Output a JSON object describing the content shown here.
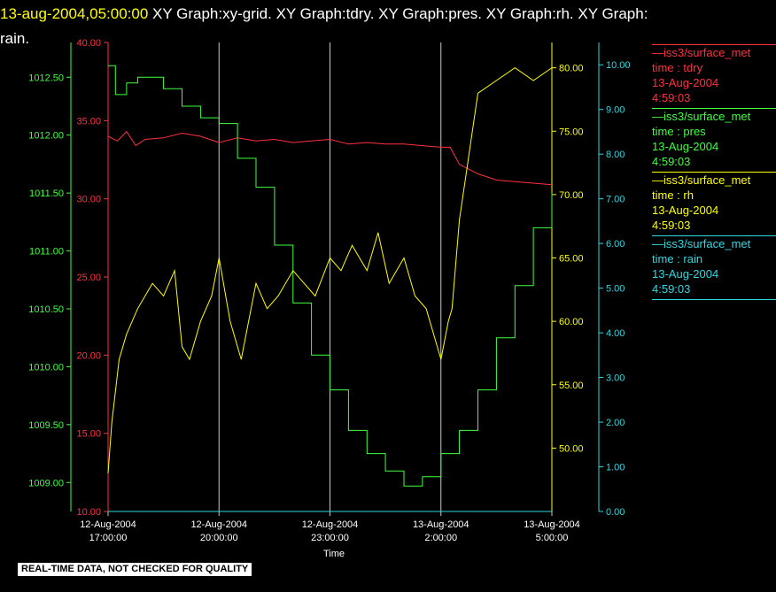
{
  "header": {
    "date": "13-aug-2004,05:00:00",
    "graphs": "XY Graph:xy-grid.  XY Graph:tdry.  XY Graph:pres.  XY Graph:rh.  XY Graph:",
    "graphs_cont": "rain."
  },
  "footer": {
    "note": "REAL-TIME DATA, NOT CHECKED FOR QUALITY"
  },
  "legend": [
    {
      "source": "—iss3/surface_met",
      "var": "time : tdry",
      "date": "13-Aug-2004",
      "time": "4:59:03",
      "color": "#ff3040"
    },
    {
      "source": "—iss3/surface_met",
      "var": "time : pres",
      "date": "13-Aug-2004",
      "time": "4:59:03",
      "color": "#40ff40"
    },
    {
      "source": "—iss3/surface_met",
      "var": "time : rh",
      "date": "13-Aug-2004",
      "time": "4:59:03",
      "color": "#ffff00"
    },
    {
      "source": "—iss3/surface_met",
      "var": "time : rain",
      "date": "13-Aug-2004",
      "time": "4:59:03",
      "color": "#30d8e0"
    }
  ],
  "chart_data": {
    "type": "line",
    "xlabel": "Time",
    "x_ticks": [
      {
        "date": "12-Aug-2004",
        "time": "17:00:00",
        "hour": 0
      },
      {
        "date": "12-Aug-2004",
        "time": "20:00:00",
        "hour": 3
      },
      {
        "date": "12-Aug-2004",
        "time": "23:00:00",
        "hour": 6
      },
      {
        "date": "13-Aug-2004",
        "time": "2:00:00",
        "hour": 9
      },
      {
        "date": "13-Aug-2004",
        "time": "5:00:00",
        "hour": 12
      }
    ],
    "xlim": [
      0,
      12
    ],
    "grid": true,
    "axes": [
      {
        "id": "pres",
        "side": "left",
        "color": "#40ff40",
        "ylim": [
          1008.75,
          1012.8
        ],
        "ticks": [
          "1009.00",
          "1009.50",
          "1010.00",
          "1010.50",
          "1011.00",
          "1011.50",
          "1012.00",
          "1012.50"
        ]
      },
      {
        "id": "tdry",
        "side": "left",
        "color": "#ff3040",
        "ylim": [
          10,
          40
        ],
        "ticks": [
          "10.00",
          "15.00",
          "20.00",
          "25.00",
          "30.00",
          "35.00",
          "40.00"
        ]
      },
      {
        "id": "rh",
        "side": "right",
        "color": "#ffff00",
        "ylim": [
          45,
          82
        ],
        "ticks": [
          "50.00",
          "55.00",
          "60.00",
          "65.00",
          "70.00",
          "75.00",
          "80.00"
        ]
      },
      {
        "id": "rain",
        "side": "right",
        "color": "#30d8e0",
        "ylim": [
          0,
          10.5
        ],
        "ticks": [
          "0.00",
          "1.00",
          "2.00",
          "3.00",
          "4.00",
          "5.00",
          "6.00",
          "7.00",
          "8.00",
          "9.00",
          "10.00"
        ]
      }
    ],
    "series": [
      {
        "axis": "tdry",
        "color": "#ff3040",
        "x": [
          0,
          0.25,
          0.5,
          0.75,
          1,
          1.5,
          2,
          2.5,
          3,
          3.5,
          4,
          4.5,
          5,
          5.5,
          6,
          6.5,
          7,
          7.5,
          8,
          8.5,
          9,
          9.25,
          9.5,
          10,
          10.5,
          11,
          11.5,
          12
        ],
        "y": [
          34,
          33.7,
          34.3,
          33.4,
          33.8,
          33.9,
          34.2,
          34,
          33.6,
          33.9,
          33.7,
          33.8,
          33.6,
          33.7,
          33.8,
          33.5,
          33.6,
          33.5,
          33.5,
          33.4,
          33.3,
          33.3,
          32.2,
          31.6,
          31.2,
          31.1,
          31,
          30.9
        ]
      },
      {
        "axis": "pres",
        "color": "#40ff40",
        "x": [
          0,
          0.2,
          0.5,
          0.8,
          1.5,
          2,
          2.5,
          3,
          3.5,
          4,
          4.5,
          5,
          5.5,
          6,
          6.5,
          7,
          7.5,
          8,
          8.5,
          9,
          9.5,
          10,
          10.5,
          11,
          11.5,
          12
        ],
        "y": [
          1012.6,
          1012.35,
          1012.45,
          1012.5,
          1012.4,
          1012.25,
          1012.15,
          1012.1,
          1011.8,
          1011.55,
          1011.05,
          1010.55,
          1010.1,
          1009.8,
          1009.45,
          1009.25,
          1009.1,
          1008.97,
          1009.05,
          1009.25,
          1009.45,
          1009.8,
          1010.25,
          1010.7,
          1011.2,
          1011.5
        ]
      },
      {
        "axis": "rh",
        "color": "#ffff00",
        "x": [
          0,
          0.1,
          0.3,
          0.5,
          0.8,
          1.2,
          1.5,
          1.8,
          2,
          2.2,
          2.5,
          2.8,
          3,
          3.3,
          3.6,
          4,
          4.3,
          4.6,
          5,
          5.3,
          5.6,
          6,
          6.3,
          6.6,
          7,
          7.3,
          7.6,
          8,
          8.3,
          8.6,
          9,
          9.2,
          9.3,
          9.5,
          9.7,
          10,
          10.5,
          11,
          11.5,
          12
        ],
        "y": [
          48,
          52,
          57,
          59,
          61,
          63,
          62,
          64,
          58,
          57,
          60,
          62,
          65,
          60,
          57,
          63,
          61,
          62,
          64,
          63,
          62,
          65,
          64,
          66,
          64,
          67,
          63,
          65,
          62,
          61,
          57,
          60,
          61,
          68,
          72,
          78,
          79,
          80,
          79,
          80
        ]
      },
      {
        "axis": "rain",
        "color": "#30d8e0",
        "x": [
          0,
          12
        ],
        "y": [
          0,
          0
        ]
      }
    ]
  }
}
